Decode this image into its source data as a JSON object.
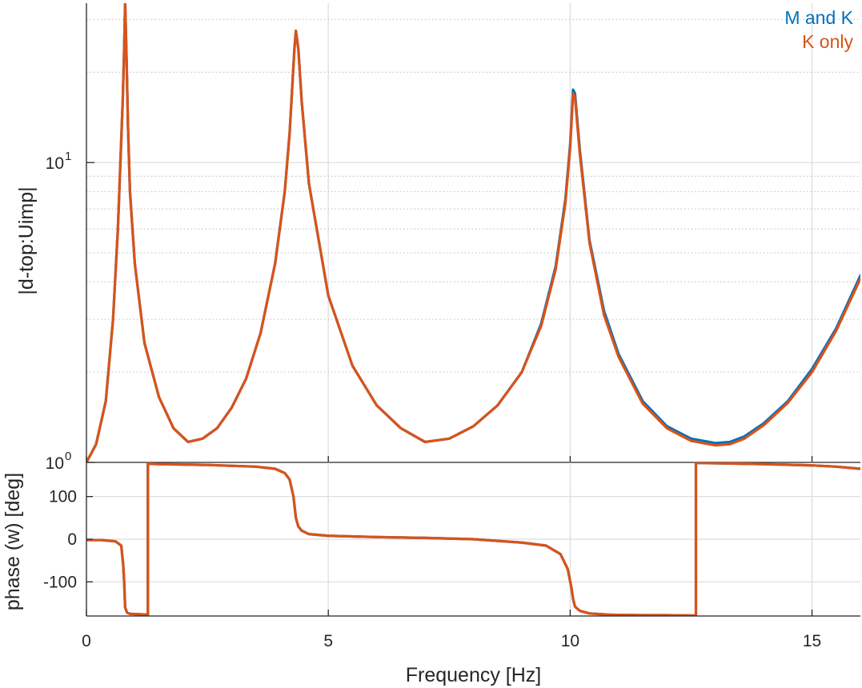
{
  "chart_data": [
    {
      "type": "line",
      "xlabel": "",
      "ylabel": "|d-top:Uimp|",
      "xlim": [
        0,
        16
      ],
      "ylim": [
        1,
        34
      ],
      "yscale": "log",
      "grid": true,
      "ytick_labels": [
        {
          "value": 1,
          "base": "10",
          "exp": "0"
        },
        {
          "value": 10,
          "base": "10",
          "exp": "1"
        }
      ],
      "legend": {
        "placement": "top-right",
        "entries": [
          "M and K",
          "K only"
        ]
      },
      "colors": {
        "M and K": "#0072BD",
        "K only": "#D95319"
      },
      "series": [
        {
          "name": "M and K",
          "x": [
            0,
            0.2,
            0.4,
            0.55,
            0.65,
            0.75,
            0.78,
            0.8,
            0.83,
            0.86,
            0.9,
            1.0,
            1.2,
            1.5,
            1.8,
            2.1,
            2.4,
            2.7,
            3.0,
            3.3,
            3.6,
            3.9,
            4.1,
            4.2,
            4.3,
            4.33,
            4.38,
            4.45,
            4.6,
            5.0,
            5.5,
            6.0,
            6.5,
            7.0,
            7.5,
            8.0,
            8.5,
            9.0,
            9.4,
            9.7,
            9.9,
            10.0,
            10.06,
            10.1,
            10.2,
            10.4,
            10.7,
            11.0,
            11.5,
            12.0,
            12.5,
            13.0,
            13.3,
            13.6,
            14.0,
            14.5,
            15.0,
            15.5,
            16.0
          ],
          "y": [
            1.0,
            1.15,
            1.6,
            3.0,
            6.0,
            16.0,
            24.0,
            34.0,
            22.0,
            13.0,
            8.0,
            4.6,
            2.5,
            1.65,
            1.3,
            1.17,
            1.2,
            1.3,
            1.52,
            1.9,
            2.7,
            4.6,
            8.0,
            12.5,
            24.0,
            27.5,
            24.0,
            16.0,
            8.5,
            3.6,
            2.1,
            1.55,
            1.3,
            1.17,
            1.2,
            1.32,
            1.55,
            2.0,
            2.9,
            4.5,
            7.5,
            11.5,
            17.5,
            17.0,
            11.0,
            5.5,
            3.2,
            2.3,
            1.6,
            1.32,
            1.2,
            1.16,
            1.17,
            1.22,
            1.35,
            1.6,
            2.05,
            2.8,
            4.2
          ]
        },
        {
          "name": "K only",
          "x": [
            0,
            0.2,
            0.4,
            0.55,
            0.65,
            0.75,
            0.78,
            0.8,
            0.83,
            0.86,
            0.9,
            1.0,
            1.2,
            1.5,
            1.8,
            2.1,
            2.4,
            2.7,
            3.0,
            3.3,
            3.6,
            3.9,
            4.1,
            4.2,
            4.3,
            4.33,
            4.38,
            4.45,
            4.6,
            5.0,
            5.5,
            6.0,
            6.5,
            7.0,
            7.5,
            8.0,
            8.5,
            9.0,
            9.4,
            9.7,
            9.9,
            10.0,
            10.06,
            10.1,
            10.2,
            10.4,
            10.7,
            11.0,
            11.5,
            12.0,
            12.5,
            13.0,
            13.3,
            13.6,
            14.0,
            14.5,
            15.0,
            15.5,
            16.0
          ],
          "y": [
            1.0,
            1.15,
            1.6,
            3.0,
            6.0,
            16.0,
            24.0,
            34.0,
            22.0,
            13.0,
            8.0,
            4.6,
            2.5,
            1.65,
            1.3,
            1.17,
            1.2,
            1.3,
            1.52,
            1.9,
            2.7,
            4.6,
            8.0,
            12.5,
            24.0,
            27.5,
            24.0,
            16.0,
            8.5,
            3.6,
            2.1,
            1.55,
            1.3,
            1.17,
            1.2,
            1.32,
            1.55,
            2.0,
            2.85,
            4.4,
            7.3,
            11.2,
            17.0,
            16.5,
            10.7,
            5.4,
            3.1,
            2.25,
            1.57,
            1.3,
            1.18,
            1.14,
            1.15,
            1.2,
            1.33,
            1.58,
            2.0,
            2.75,
            4.1
          ]
        }
      ]
    },
    {
      "type": "line",
      "xlabel": "Frequency [Hz]",
      "ylabel": "phase (w) [deg]",
      "xlim": [
        0,
        16
      ],
      "ylim": [
        -180,
        180
      ],
      "grid": true,
      "xticks": [
        0,
        5,
        10,
        15
      ],
      "xtick_labels": [
        "0",
        "5",
        "10",
        "15"
      ],
      "yticks": [
        -100,
        0,
        100
      ],
      "ytick_labels": [
        "-100",
        "0",
        "100"
      ],
      "series": [
        {
          "name": "M and K",
          "x": [
            0,
            0.3,
            0.6,
            0.72,
            0.76,
            0.78,
            0.8,
            0.84,
            0.9,
            1.1,
            1.27,
            1.27,
            1.5,
            2.5,
            3.5,
            3.9,
            4.1,
            4.2,
            4.28,
            4.33,
            4.38,
            4.45,
            4.6,
            5.0,
            6.0,
            7.0,
            8.0,
            9.0,
            9.5,
            9.8,
            9.95,
            10.02,
            10.06,
            10.1,
            10.2,
            10.4,
            10.8,
            11.5,
            12.0,
            12.6,
            12.6,
            13.0,
            14.0,
            15.0,
            15.5,
            16.0
          ],
          "y": [
            -2,
            -2,
            -5,
            -15,
            -60,
            -100,
            -160,
            -172,
            -175,
            -176,
            -177,
            177,
            176,
            174,
            170,
            165,
            155,
            140,
            100,
            50,
            30,
            20,
            12,
            8,
            5,
            3,
            0,
            -8,
            -15,
            -35,
            -70,
            -110,
            -140,
            -158,
            -168,
            -174,
            -177,
            -178,
            -178,
            -179,
            179,
            178,
            176,
            173,
            170,
            165
          ]
        },
        {
          "name": "K only",
          "x": [
            0,
            0.3,
            0.6,
            0.72,
            0.76,
            0.78,
            0.8,
            0.84,
            0.9,
            1.1,
            1.27,
            1.27,
            1.5,
            2.5,
            3.5,
            3.9,
            4.1,
            4.2,
            4.28,
            4.33,
            4.38,
            4.45,
            4.6,
            5.0,
            6.0,
            7.0,
            8.0,
            9.0,
            9.5,
            9.8,
            9.95,
            10.02,
            10.06,
            10.1,
            10.2,
            10.4,
            10.8,
            11.5,
            12.0,
            12.6,
            12.6,
            13.0,
            14.0,
            15.0,
            15.5,
            16.0
          ],
          "y": [
            -2,
            -2,
            -5,
            -15,
            -60,
            -100,
            -160,
            -172,
            -175,
            -176,
            -177,
            177,
            176,
            174,
            170,
            165,
            155,
            140,
            100,
            50,
            30,
            20,
            12,
            8,
            5,
            3,
            0,
            -8,
            -15,
            -35,
            -70,
            -110,
            -140,
            -158,
            -168,
            -174,
            -177,
            -178,
            -178,
            -179,
            179,
            178,
            176,
            173,
            170,
            165
          ]
        }
      ]
    }
  ]
}
